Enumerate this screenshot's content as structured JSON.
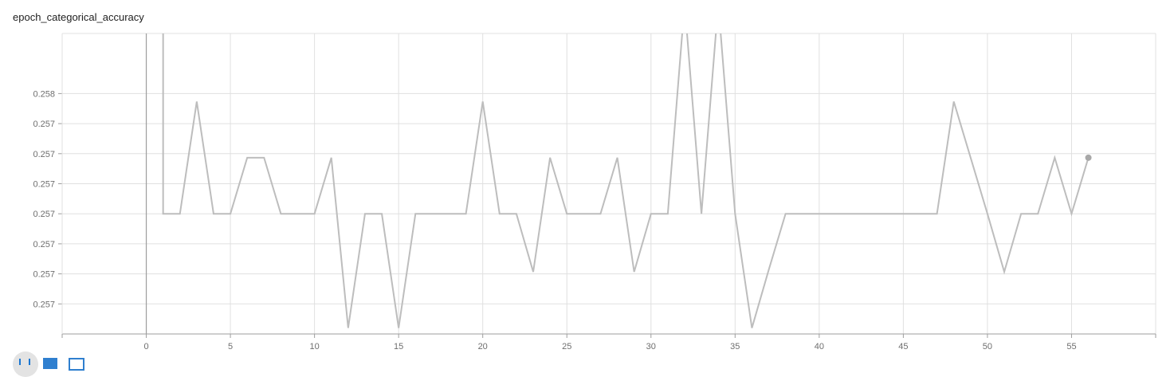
{
  "title": "epoch_categorical_accuracy",
  "chart_data": {
    "type": "line",
    "title": "epoch_categorical_accuracy",
    "xlabel": "",
    "ylabel": "",
    "xlim": [
      -5,
      60
    ],
    "ylim": [
      0.25665,
      0.25815
    ],
    "x_ticks": [
      0,
      5,
      10,
      15,
      20,
      25,
      30,
      35,
      40,
      45,
      50,
      55
    ],
    "y_ticks": [
      {
        "value": 0.2568,
        "label": "0.257"
      },
      {
        "value": 0.25695,
        "label": "0.257"
      },
      {
        "value": 0.2571,
        "label": "0.257"
      },
      {
        "value": 0.25725,
        "label": "0.257"
      },
      {
        "value": 0.2574,
        "label": "0.257"
      },
      {
        "value": 0.25755,
        "label": "0.257"
      },
      {
        "value": 0.2577,
        "label": "0.257"
      },
      {
        "value": 0.25785,
        "label": "0.258"
      }
    ],
    "grid": true,
    "series": [
      {
        "color": "#bdbdbd",
        "x": [
          1,
          2,
          3,
          4,
          5,
          6,
          7,
          8,
          9,
          10,
          11,
          12,
          13,
          14,
          15,
          16,
          17,
          18,
          19,
          20,
          21,
          22,
          23,
          24,
          25,
          26,
          27,
          28,
          29,
          30,
          31,
          32,
          33,
          34,
          35,
          36,
          37,
          38,
          39,
          40,
          41,
          42,
          43,
          44,
          45,
          46,
          47,
          48,
          49,
          50,
          51,
          52,
          53,
          54,
          55,
          56
        ],
        "values": [
          0.25725,
          0.25725,
          0.25781,
          0.25725,
          0.25725,
          0.25753,
          0.25753,
          0.25725,
          0.25725,
          0.25725,
          0.25753,
          0.25668,
          0.25725,
          0.25725,
          0.25668,
          0.25725,
          0.25725,
          0.25725,
          0.25725,
          0.25781,
          0.25725,
          0.25725,
          0.25696,
          0.25753,
          0.25725,
          0.25725,
          0.25725,
          0.25753,
          0.25696,
          0.25725,
          0.25725,
          0.2583,
          0.25725,
          0.2583,
          0.25725,
          0.25668,
          0.25697,
          0.25725,
          0.25725,
          0.25725,
          0.25725,
          0.25725,
          0.25725,
          0.25725,
          0.25725,
          0.25725,
          0.25725,
          0.25781,
          0.25753,
          0.25725,
          0.25696,
          0.25725,
          0.25725,
          0.25753,
          0.25725,
          0.25753
        ]
      }
    ],
    "axis_line_color": "#9e9e9e",
    "grid_color": "#e0e0e0"
  }
}
